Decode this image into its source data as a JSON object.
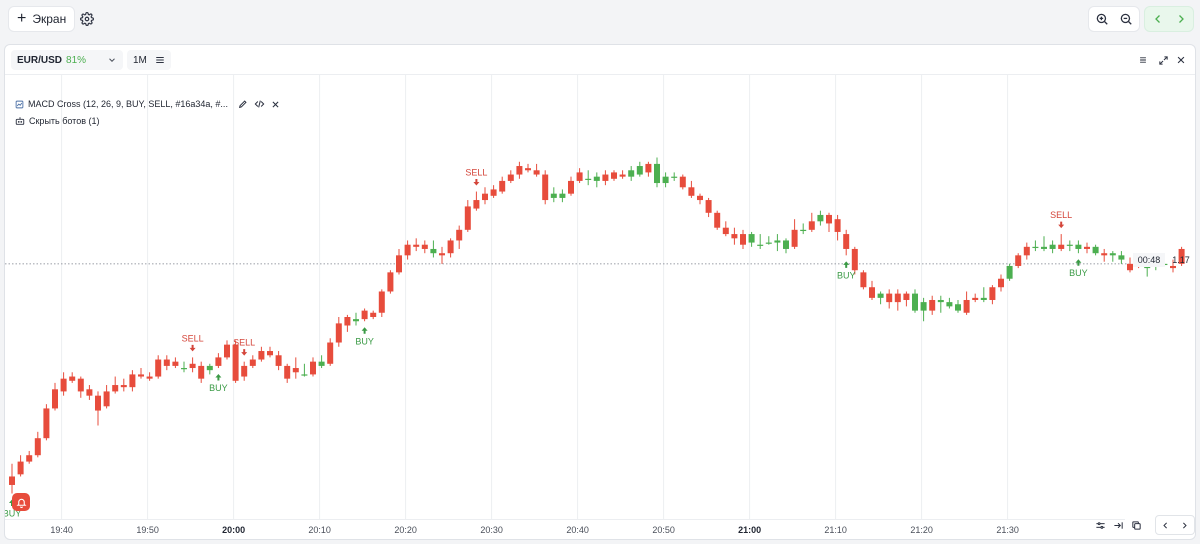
{
  "topbar": {
    "add_screen_label": "Экран"
  },
  "panel": {
    "symbol": "EUR/USD",
    "payout": "81%",
    "timeframe": "1M"
  },
  "bot": {
    "title": "MACD Cross (12, 26, 9, BUY, SELL, #16a34a, #...",
    "hide_bots_label": "Скрыть ботов (1)"
  },
  "axis": {
    "time_labels": [
      "19:40",
      "19:50",
      "20:00",
      "20:10",
      "20:20",
      "20:30",
      "20:40",
      "20:50",
      "21:00",
      "21:10",
      "21:20",
      "21:30"
    ],
    "bold_labels": [
      "20:00",
      "21:00"
    ],
    "countdown": "00:48",
    "current_price": "1.17"
  },
  "colors": {
    "bull": "#4caf50",
    "bear": "#e74c3c",
    "buy_text": "#3a9a45",
    "sell_text": "#d4453a"
  },
  "chart_data": {
    "type": "candlestick",
    "symbol": "EUR/USD",
    "timeframe": "1M",
    "current_price_label": "1.17",
    "x_labels": [
      "19:40",
      "19:50",
      "20:00",
      "20:10",
      "20:20",
      "20:30",
      "20:40",
      "20:50",
      "21:00",
      "21:10",
      "21:20",
      "21:30"
    ],
    "candles": [
      [
        0.2,
        0.16,
        0.26,
        0.12
      ],
      [
        0.27,
        0.21,
        0.3,
        0.2
      ],
      [
        0.3,
        0.27,
        0.32,
        0.26
      ],
      [
        0.38,
        0.3,
        0.41,
        0.29
      ],
      [
        0.52,
        0.38,
        0.54,
        0.37
      ],
      [
        0.61,
        0.52,
        0.64,
        0.51
      ],
      [
        0.66,
        0.6,
        0.69,
        0.58
      ],
      [
        0.67,
        0.65,
        0.69,
        0.64
      ],
      [
        0.66,
        0.6,
        0.67,
        0.57
      ],
      [
        0.61,
        0.58,
        0.63,
        0.56
      ],
      [
        0.58,
        0.51,
        0.6,
        0.44
      ],
      [
        0.6,
        0.53,
        0.63,
        0.52
      ],
      [
        0.63,
        0.6,
        0.67,
        0.59
      ],
      [
        0.63,
        0.62,
        0.66,
        0.6
      ],
      [
        0.68,
        0.62,
        0.7,
        0.6
      ],
      [
        0.68,
        0.67,
        0.71,
        0.66
      ],
      [
        0.67,
        0.66,
        0.69,
        0.65
      ],
      [
        0.75,
        0.67,
        0.77,
        0.66
      ],
      [
        0.75,
        0.72,
        0.77,
        0.7
      ],
      [
        0.74,
        0.72,
        0.76,
        0.71
      ],
      [
        0.71,
        0.71,
        0.74,
        0.69
      ],
      [
        0.73,
        0.71,
        0.76,
        0.69
      ],
      [
        0.72,
        0.66,
        0.74,
        0.64
      ],
      [
        0.7,
        0.72,
        0.73,
        0.68
      ],
      [
        0.76,
        0.72,
        0.78,
        0.71
      ],
      [
        0.82,
        0.76,
        0.84,
        0.75
      ],
      [
        0.82,
        0.65,
        0.84,
        0.64
      ],
      [
        0.72,
        0.67,
        0.74,
        0.65
      ],
      [
        0.75,
        0.72,
        0.77,
        0.71
      ],
      [
        0.79,
        0.75,
        0.81,
        0.74
      ],
      [
        0.79,
        0.77,
        0.81,
        0.76
      ],
      [
        0.77,
        0.72,
        0.79,
        0.7
      ],
      [
        0.72,
        0.66,
        0.73,
        0.64
      ],
      [
        0.71,
        0.69,
        0.76,
        0.66
      ],
      [
        0.68,
        0.68,
        0.73,
        0.67
      ],
      [
        0.74,
        0.68,
        0.76,
        0.67
      ],
      [
        0.72,
        0.74,
        0.77,
        0.71
      ],
      [
        0.83,
        0.73,
        0.85,
        0.72
      ],
      [
        0.92,
        0.83,
        0.95,
        0.81
      ],
      [
        0.95,
        0.91,
        0.96,
        0.88
      ],
      [
        0.93,
        0.94,
        0.97,
        0.91
      ],
      [
        0.98,
        0.94,
        0.99,
        0.93
      ],
      [
        0.97,
        0.95,
        0.98,
        0.94
      ],
      [
        1.07,
        0.97,
        1.08,
        0.95
      ],
      [
        1.16,
        1.07,
        1.17,
        1.06
      ],
      [
        1.24,
        1.16,
        1.27,
        1.15
      ],
      [
        1.29,
        1.24,
        1.31,
        1.22
      ],
      [
        1.29,
        1.28,
        1.32,
        1.26
      ],
      [
        1.29,
        1.27,
        1.31,
        1.25
      ],
      [
        1.25,
        1.27,
        1.31,
        1.23
      ],
      [
        1.25,
        1.24,
        1.28,
        1.2
      ],
      [
        1.31,
        1.25,
        1.32,
        1.23
      ],
      [
        1.36,
        1.31,
        1.38,
        1.27
      ],
      [
        1.47,
        1.36,
        1.5,
        1.35
      ],
      [
        1.5,
        1.46,
        1.54,
        1.45
      ],
      [
        1.53,
        1.5,
        1.56,
        1.48
      ],
      [
        1.55,
        1.52,
        1.57,
        1.51
      ],
      [
        1.59,
        1.54,
        1.61,
        1.53
      ],
      [
        1.62,
        1.59,
        1.64,
        1.58
      ],
      [
        1.66,
        1.62,
        1.68,
        1.6
      ],
      [
        1.65,
        1.64,
        1.67,
        1.63
      ],
      [
        1.64,
        1.62,
        1.67,
        1.61
      ],
      [
        1.62,
        1.5,
        1.64,
        1.48
      ],
      [
        1.51,
        1.53,
        1.56,
        1.49
      ],
      [
        1.51,
        1.53,
        1.55,
        1.49
      ],
      [
        1.59,
        1.53,
        1.61,
        1.52
      ],
      [
        1.63,
        1.59,
        1.65,
        1.58
      ],
      [
        1.6,
        1.6,
        1.64,
        1.57
      ],
      [
        1.59,
        1.61,
        1.63,
        1.56
      ],
      [
        1.62,
        1.59,
        1.64,
        1.57
      ],
      [
        1.63,
        1.6,
        1.64,
        1.59
      ],
      [
        1.62,
        1.61,
        1.64,
        1.6
      ],
      [
        1.61,
        1.64,
        1.66,
        1.59
      ],
      [
        1.62,
        1.66,
        1.68,
        1.61
      ],
      [
        1.67,
        1.63,
        1.68,
        1.61
      ],
      [
        1.58,
        1.67,
        1.7,
        1.56
      ],
      [
        1.58,
        1.61,
        1.63,
        1.56
      ],
      [
        1.61,
        1.61,
        1.63,
        1.59
      ],
      [
        1.61,
        1.56,
        1.62,
        1.55
      ],
      [
        1.56,
        1.52,
        1.59,
        1.51
      ],
      [
        1.52,
        1.5,
        1.53,
        1.48
      ],
      [
        1.5,
        1.44,
        1.51,
        1.42
      ],
      [
        1.44,
        1.37,
        1.45,
        1.36
      ],
      [
        1.37,
        1.34,
        1.4,
        1.33
      ],
      [
        1.34,
        1.32,
        1.37,
        1.29
      ],
      [
        1.34,
        1.29,
        1.36,
        1.27
      ],
      [
        1.3,
        1.34,
        1.35,
        1.28
      ],
      [
        1.29,
        1.29,
        1.34,
        1.27
      ],
      [
        1.3,
        1.3,
        1.33,
        1.29
      ],
      [
        1.3,
        1.31,
        1.34,
        1.26
      ],
      [
        1.27,
        1.31,
        1.32,
        1.25
      ],
      [
        1.36,
        1.28,
        1.41,
        1.27
      ],
      [
        1.36,
        1.36,
        1.39,
        1.34
      ],
      [
        1.4,
        1.36,
        1.44,
        1.35
      ],
      [
        1.4,
        1.43,
        1.45,
        1.38
      ],
      [
        1.43,
        1.39,
        1.44,
        1.35
      ],
      [
        1.41,
        1.35,
        1.43,
        1.31
      ],
      [
        1.34,
        1.27,
        1.36,
        1.24
      ],
      [
        1.27,
        1.17,
        1.28,
        1.15
      ],
      [
        1.16,
        1.09,
        1.17,
        1.08
      ],
      [
        1.09,
        1.04,
        1.12,
        1.03
      ],
      [
        1.04,
        1.06,
        1.07,
        1.01
      ],
      [
        1.06,
        1.02,
        1.08,
        0.99
      ],
      [
        1.06,
        1.02,
        1.08,
        0.98
      ],
      [
        1.06,
        1.03,
        1.07,
        1.0
      ],
      [
        0.98,
        1.06,
        1.08,
        0.97
      ],
      [
        0.98,
        1.02,
        1.04,
        0.93
      ],
      [
        1.03,
        0.98,
        1.05,
        0.96
      ],
      [
        1.02,
        1.03,
        1.05,
        0.97
      ],
      [
        1.0,
        1.02,
        1.04,
        0.99
      ],
      [
        0.98,
        1.01,
        1.03,
        0.97
      ],
      [
        1.03,
        0.97,
        1.07,
        0.96
      ],
      [
        1.04,
        1.03,
        1.06,
        1.02
      ],
      [
        1.03,
        1.04,
        1.09,
        1.02
      ],
      [
        1.09,
        1.03,
        1.1,
        1.01
      ],
      [
        1.13,
        1.09,
        1.15,
        1.07
      ],
      [
        1.13,
        1.19,
        1.2,
        1.12
      ],
      [
        1.24,
        1.19,
        1.25,
        1.18
      ],
      [
        1.28,
        1.24,
        1.3,
        1.22
      ],
      [
        1.28,
        1.28,
        1.31,
        1.26
      ],
      [
        1.27,
        1.28,
        1.33,
        1.26
      ],
      [
        1.27,
        1.29,
        1.31,
        1.25
      ],
      [
        1.29,
        1.27,
        1.34,
        1.26
      ],
      [
        1.29,
        1.29,
        1.31,
        1.26
      ],
      [
        1.27,
        1.29,
        1.31,
        1.25
      ],
      [
        1.28,
        1.27,
        1.3,
        1.25
      ],
      [
        1.25,
        1.28,
        1.29,
        1.24
      ],
      [
        1.25,
        1.24,
        1.27,
        1.21
      ],
      [
        1.24,
        1.25,
        1.26,
        1.21
      ],
      [
        1.22,
        1.24,
        1.26,
        1.2
      ],
      [
        1.2,
        1.17,
        1.23,
        1.16
      ],
      [
        1.21,
        1.2,
        1.22,
        1.18
      ],
      [
        1.18,
        1.19,
        1.24,
        1.14
      ],
      [
        1.2,
        1.21,
        1.25,
        1.17
      ],
      [
        1.2,
        1.2,
        1.24,
        1.19
      ],
      [
        1.19,
        1.18,
        1.22,
        1.16
      ],
      [
        1.27,
        1.2,
        1.28,
        1.19
      ]
    ],
    "candle_format": [
      "open",
      "close",
      "high",
      "low"
    ],
    "signals": [
      {
        "label": "BUY",
        "index": 0
      },
      {
        "label": "SELL",
        "index": 21
      },
      {
        "label": "BUY",
        "index": 24
      },
      {
        "label": "SELL",
        "index": 27
      },
      {
        "label": "BUY",
        "index": 41
      },
      {
        "label": "SELL",
        "index": 54
      },
      {
        "label": "BUY",
        "index": 97
      },
      {
        "label": "SELL",
        "index": 122
      },
      {
        "label": "BUY",
        "index": 124
      }
    ],
    "grid": true
  }
}
